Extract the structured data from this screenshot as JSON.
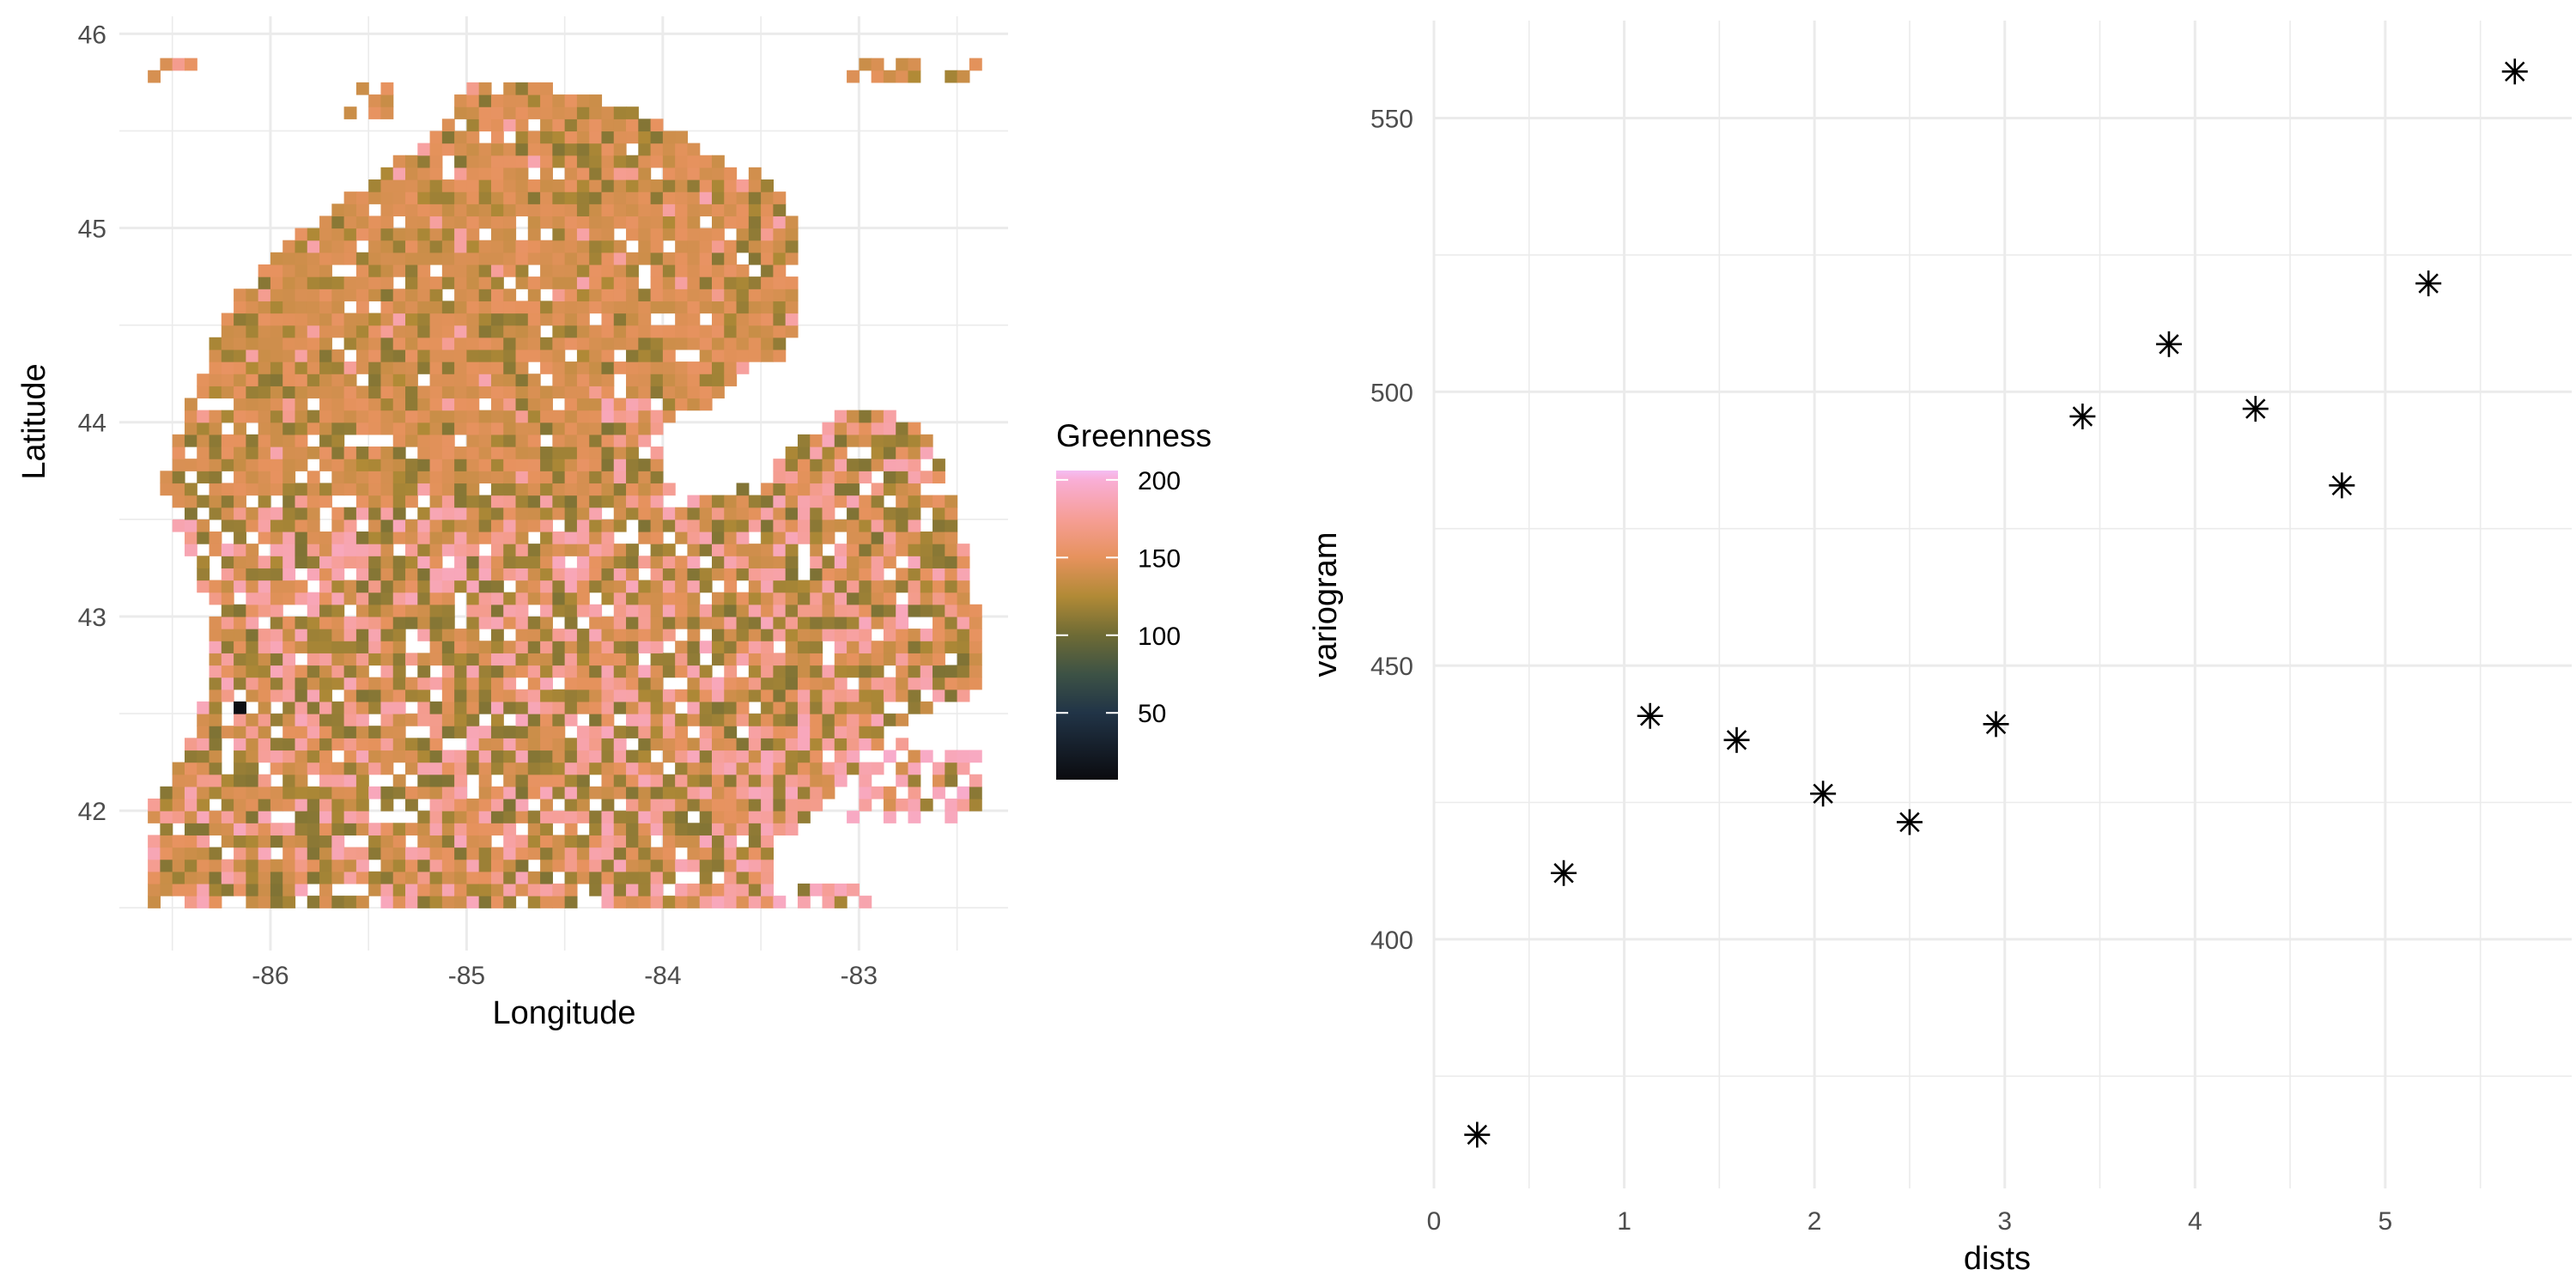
{
  "chart_data": [
    {
      "type": "heatmap",
      "title": "",
      "xlabel": "Longitude",
      "ylabel": "Latitude",
      "x_ticks": [
        "-86",
        "-85",
        "-84",
        "-83"
      ],
      "y_ticks": [
        "42",
        "43",
        "44",
        "45",
        "46"
      ],
      "x_tick_values": [
        -86,
        -85,
        -84,
        -83
      ],
      "y_tick_values": [
        42,
        43,
        44,
        45,
        46
      ],
      "xlim": [
        -86.77,
        -82.24
      ],
      "ylim": [
        41.28,
        46.09
      ],
      "cell_size_deg": 0.0625,
      "grid": true,
      "legend": {
        "title": "Greenness",
        "position": "right",
        "labels": [
          "200",
          "150",
          "100",
          "50"
        ],
        "values": [
          200,
          150,
          100,
          50
        ],
        "range": [
          7,
          206
        ]
      },
      "colorscale": [
        [
          7,
          "#0b0b0f"
        ],
        [
          50,
          "#213447"
        ],
        [
          75,
          "#3d5245"
        ],
        [
          100,
          "#6e6b35"
        ],
        [
          125,
          "#b18a36"
        ],
        [
          150,
          "#e6925d"
        ],
        [
          175,
          "#f69e96"
        ],
        [
          200,
          "#f9aed6"
        ],
        [
          206,
          "#f4bdf2"
        ]
      ],
      "region_outline": [
        [
          -86.62,
          41.47
        ],
        [
          -83.45,
          41.47
        ],
        [
          -83.45,
          41.75
        ],
        [
          -83.3,
          41.95
        ],
        [
          -83.1,
          42.1
        ],
        [
          -82.95,
          42.35
        ],
        [
          -82.6,
          42.55
        ],
        [
          -82.4,
          42.6
        ],
        [
          -82.4,
          43.05
        ],
        [
          -82.48,
          43.45
        ],
        [
          -82.55,
          43.72
        ],
        [
          -82.68,
          43.98
        ],
        [
          -83.0,
          44.1
        ],
        [
          -83.3,
          43.9
        ],
        [
          -83.5,
          43.68
        ],
        [
          -83.9,
          43.58
        ],
        [
          -84.0,
          43.72
        ],
        [
          -84.0,
          43.95
        ],
        [
          -83.75,
          44.1
        ],
        [
          -83.55,
          44.28
        ],
        [
          -83.35,
          44.35
        ],
        [
          -83.3,
          44.9
        ],
        [
          -83.35,
          45.1
        ],
        [
          -83.45,
          45.25
        ],
        [
          -83.7,
          45.35
        ],
        [
          -83.95,
          45.5
        ],
        [
          -84.25,
          45.65
        ],
        [
          -84.5,
          45.7
        ],
        [
          -84.7,
          45.77
        ],
        [
          -85.0,
          45.72
        ],
        [
          -85.1,
          45.55
        ],
        [
          -85.3,
          45.38
        ],
        [
          -85.55,
          45.2
        ],
        [
          -85.75,
          45.05
        ],
        [
          -85.95,
          44.9
        ],
        [
          -86.12,
          44.75
        ],
        [
          -86.25,
          44.5
        ],
        [
          -86.35,
          44.25
        ],
        [
          -86.45,
          44.0
        ],
        [
          -86.55,
          43.7
        ],
        [
          -86.5,
          43.5
        ],
        [
          -86.4,
          43.3
        ],
        [
          -86.3,
          43.0
        ],
        [
          -86.3,
          42.75
        ],
        [
          -86.35,
          42.5
        ],
        [
          -86.45,
          42.25
        ],
        [
          -86.62,
          42.0
        ]
      ],
      "outlying_areas": [
        {
          "lon": [
            -86.6,
            -86.35
          ],
          "lat": [
            45.75,
            45.88
          ],
          "mix": "north"
        },
        {
          "lon": [
            -85.6,
            -85.35
          ],
          "lat": [
            45.55,
            45.78
          ],
          "mix": "north"
        },
        {
          "lon": [
            -83.05,
            -82.4
          ],
          "lat": [
            45.72,
            45.88
          ],
          "mix": "north"
        },
        {
          "lon": [
            -83.1,
            -82.4
          ],
          "lat": [
            41.95,
            42.35
          ],
          "mix": "pink"
        },
        {
          "lon": [
            -83.45,
            -82.9
          ],
          "lat": [
            41.47,
            41.6
          ],
          "mix": "pink"
        }
      ]
    },
    {
      "type": "scatter",
      "title": "",
      "xlabel": "dists",
      "ylabel": "variogram",
      "x_ticks": [
        "0",
        "1",
        "2",
        "3",
        "4",
        "5"
      ],
      "y_ticks": [
        "400",
        "450",
        "500",
        "550"
      ],
      "x_tick_values": [
        0,
        1,
        2,
        3,
        4,
        5
      ],
      "y_tick_values": [
        400,
        450,
        500,
        550
      ],
      "xlim": [
        0,
        5.98
      ],
      "ylim": [
        354.5,
        567.8
      ],
      "grid": true,
      "marker": "asterisk",
      "x": [
        0.227,
        0.682,
        1.136,
        1.591,
        2.045,
        2.5,
        2.954,
        3.409,
        3.863,
        4.318,
        4.772,
        5.227,
        5.681
      ],
      "y": [
        364.3,
        412.1,
        440.8,
        436.4,
        426.6,
        421.4,
        439.3,
        495.5,
        508.7,
        496.9,
        482.9,
        519.8,
        558.5
      ]
    }
  ]
}
